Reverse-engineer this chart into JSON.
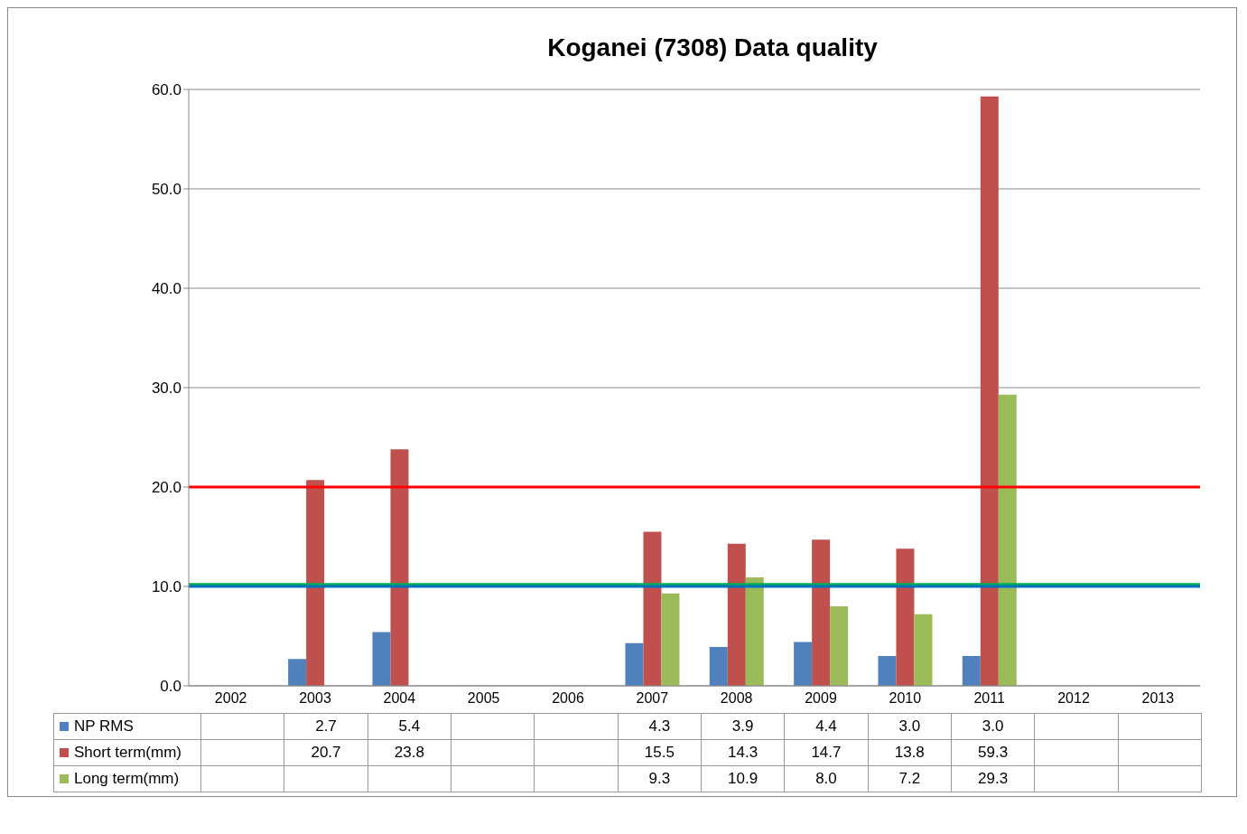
{
  "chart_data": {
    "type": "bar",
    "title": "Koganei (7308) Data quality",
    "categories": [
      "2002",
      "2003",
      "2004",
      "2005",
      "2006",
      "2007",
      "2008",
      "2009",
      "2010",
      "2011",
      "2012",
      "2013"
    ],
    "series": [
      {
        "name": "NP RMS",
        "color": "#4f81bd",
        "values": [
          null,
          2.7,
          5.4,
          null,
          null,
          4.3,
          3.9,
          4.4,
          3.0,
          3.0,
          null,
          null
        ],
        "value_labels": [
          null,
          "2.7",
          "5.4",
          null,
          null,
          "4.3",
          "3.9",
          "4.4",
          "3.0",
          "3.0",
          null,
          null
        ]
      },
      {
        "name": "Short term(mm)",
        "color": "#c0504d",
        "values": [
          null,
          20.7,
          23.8,
          null,
          null,
          15.5,
          14.3,
          14.7,
          13.8,
          59.3,
          null,
          null
        ],
        "value_labels": [
          null,
          "20.7",
          "23.8",
          null,
          null,
          "15.5",
          "14.3",
          "14.7",
          "13.8",
          "59.3",
          null,
          null
        ]
      },
      {
        "name": "Long term(mm)",
        "color": "#9bbb59",
        "values": [
          null,
          null,
          null,
          null,
          null,
          9.3,
          10.9,
          8.0,
          7.2,
          29.3,
          null,
          null
        ],
        "value_labels": [
          null,
          null,
          null,
          null,
          null,
          "9.3",
          "10.9",
          "8.0",
          "7.2",
          "29.3",
          null,
          null
        ]
      }
    ],
    "ylim": [
      0,
      60
    ],
    "yticks": [
      {
        "value": 0,
        "label": "0.0"
      },
      {
        "value": 10,
        "label": "10.0"
      },
      {
        "value": 20,
        "label": "20.0"
      },
      {
        "value": 30,
        "label": "30.0"
      },
      {
        "value": 40,
        "label": "40.0"
      },
      {
        "value": 50,
        "label": "50.0"
      },
      {
        "value": 60,
        "label": "60.0"
      }
    ],
    "grid": "y",
    "legend": "bottom",
    "ref_lines": [
      {
        "axis": "y",
        "value": 20,
        "color": "#ff0000"
      },
      {
        "axis": "y",
        "value": 10.2,
        "color": "#00b050"
      },
      {
        "axis": "y",
        "value": 10,
        "color": "#0070c0"
      }
    ]
  }
}
